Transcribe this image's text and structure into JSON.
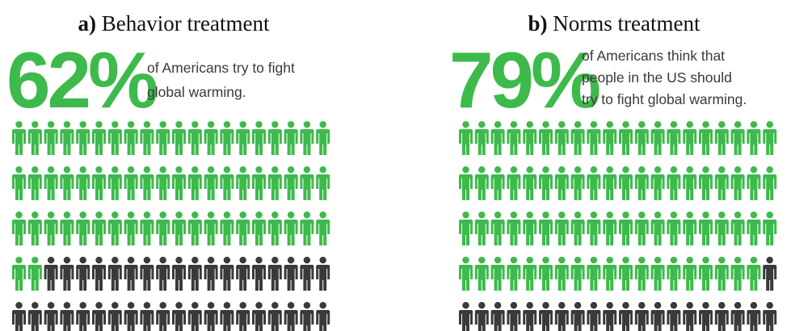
{
  "chart_data": [
    {
      "type": "pictograph",
      "label": "a)",
      "title": "Behavior treatment",
      "value": 62,
      "value_label": "62%",
      "caption": [
        "of Americans try to fight",
        "global warming."
      ],
      "ylim": [
        0,
        100
      ],
      "colors": {
        "filled": "#3dba4b",
        "empty": "#3a3a3a"
      }
    },
    {
      "type": "pictograph",
      "label": "b)",
      "title": "Norms treatment",
      "value": 79,
      "value_label": "79%",
      "caption": [
        "of Americans think that",
        "people in the US should",
        "try to fight global warming."
      ],
      "ylim": [
        0,
        100
      ],
      "colors": {
        "filled": "#3dba4b",
        "empty": "#3a3a3a"
      }
    }
  ]
}
